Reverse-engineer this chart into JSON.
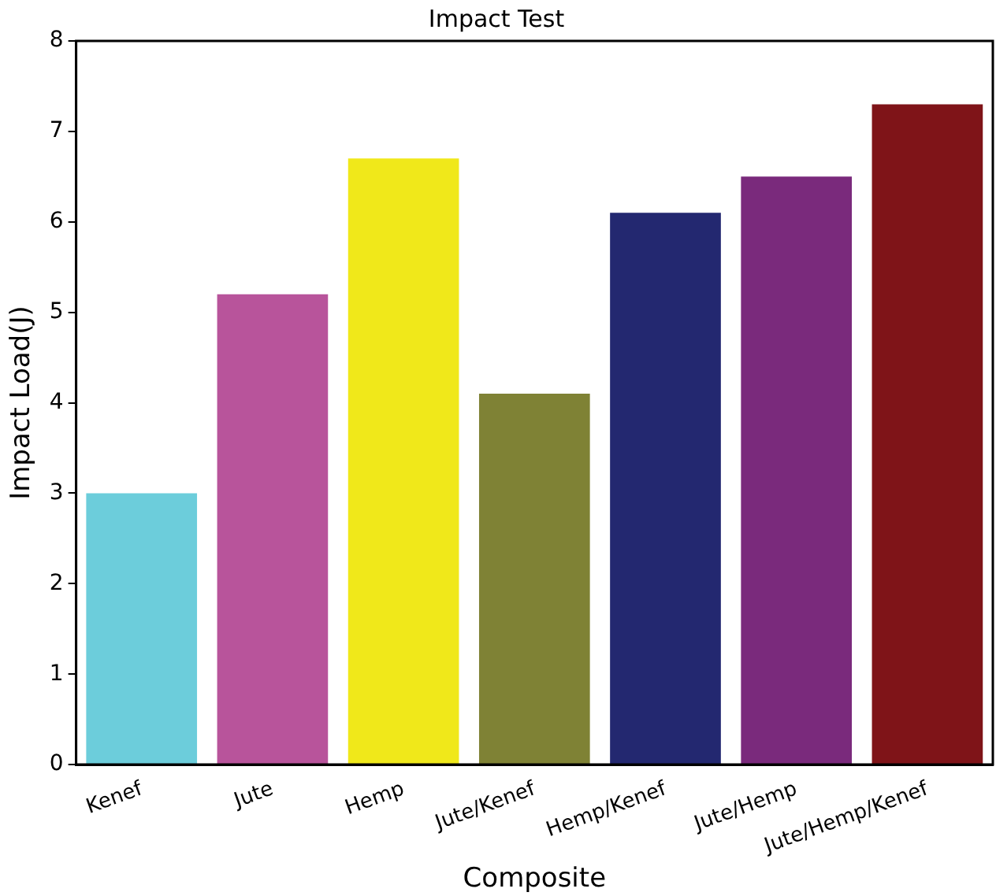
{
  "chart_data": {
    "type": "bar",
    "title": "Impact Test",
    "xlabel": "Composite",
    "ylabel": "Impact Load(J)",
    "categories": [
      "Kenef",
      "Jute",
      "Hemp",
      "Jute/Kenef",
      "Hemp/Kenef",
      "Jute/Hemp",
      "Jute/Hemp/Kenef"
    ],
    "values": [
      3.0,
      5.2,
      6.7,
      4.1,
      6.1,
      6.5,
      7.3
    ],
    "colors": [
      "#6ccddb",
      "#b8549b",
      "#f0e81a",
      "#7f8235",
      "#232870",
      "#7a2a7c",
      "#7f1418"
    ],
    "ylim": [
      0,
      8
    ],
    "yticks": [
      0,
      1,
      2,
      3,
      4,
      5,
      6,
      7,
      8
    ],
    "grid": false,
    "legend": false
  }
}
